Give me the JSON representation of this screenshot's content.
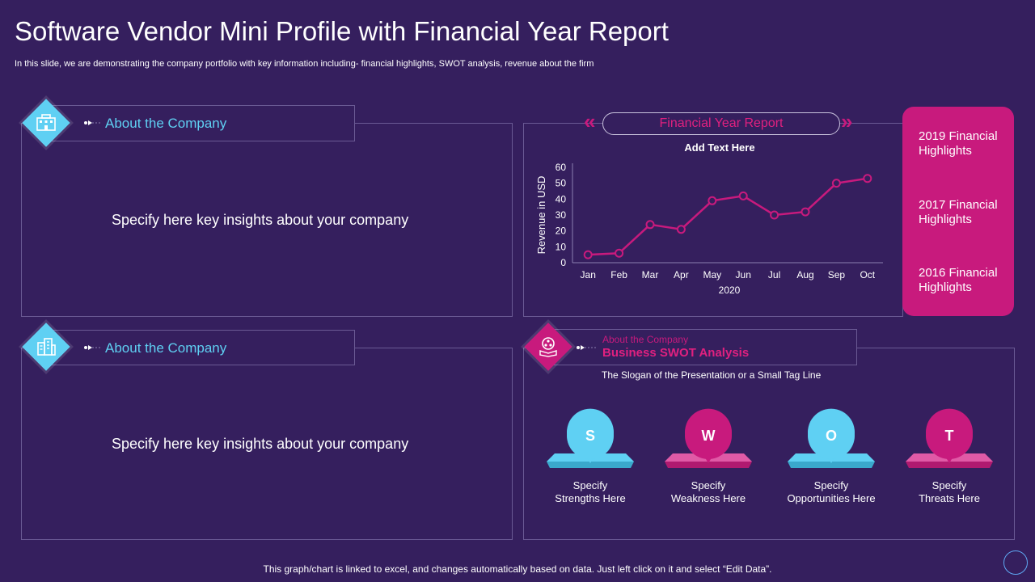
{
  "title": "Software Vendor Mini Profile with Financial Year Report",
  "subtitle": "In this slide, we are demonstrating the company portfolio with key information including- financial highlights, SWOT analysis, revenue about the firm",
  "about_top": {
    "label": "About the Company",
    "insight": "Specify here key insights about your company",
    "icon": "office-building-icon"
  },
  "about_bottom": {
    "label": "About the Company",
    "insight": "Specify here key insights about your company",
    "icon": "city-buildings-icon"
  },
  "financial": {
    "header": "Financial Year Report"
  },
  "highlights": [
    {
      "label": "2019 Financial Highlights"
    },
    {
      "label": "2017 Financial Highlights"
    },
    {
      "label": "2016 Financial Highlights"
    }
  ],
  "swot": {
    "small_label": "About the Company",
    "title": "Business SWOT Analysis",
    "slogan": "The Slogan of the Presentation or a Small Tag Line",
    "icon": "network-book-icon",
    "items": [
      {
        "letter": "S",
        "line1": "Specify",
        "line2": "Strengths Here",
        "color": "#5fd0f3"
      },
      {
        "letter": "W",
        "line1": "Specify",
        "line2": "Weakness Here",
        "color": "#c81a7d"
      },
      {
        "letter": "O",
        "line1": "Specify",
        "line2": "Opportunities Here",
        "color": "#5fd0f3"
      },
      {
        "letter": "T",
        "line1": "Specify",
        "line2": "Threats Here",
        "color": "#c81a7d"
      }
    ]
  },
  "footer": "This graph/chart is linked to excel,  and changes automatically based on data. Just left click on it and select “Edit Data”.",
  "colors": {
    "background": "#351f5e",
    "accent_pink": "#c81a7d",
    "accent_cyan": "#5fd0f3",
    "line": "#c81a7d"
  },
  "chart_data": {
    "type": "line",
    "title": "Add Text Here",
    "xlabel": "2020",
    "ylabel": "Revenue in USD",
    "categories": [
      "Jan",
      "Feb",
      "Mar",
      "Apr",
      "May",
      "Jun",
      "Jul",
      "Aug",
      "Sep",
      "Oct"
    ],
    "series": [
      {
        "name": "Revenue",
        "values": [
          5,
          6,
          24,
          21,
          39,
          42,
          30,
          32,
          50,
          53
        ]
      }
    ],
    "yticks": [
      0,
      10,
      20,
      30,
      40,
      50,
      60
    ],
    "ylim": [
      0,
      60
    ],
    "grid": false,
    "legend": "none"
  }
}
